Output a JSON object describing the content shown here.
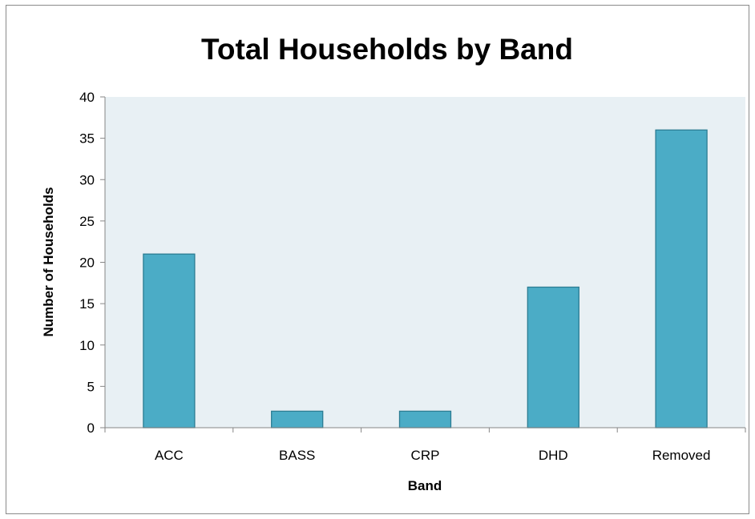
{
  "chart_data": {
    "type": "bar",
    "title": "Total Households by Band",
    "xlabel": "Band",
    "ylabel": "Number of Households",
    "categories": [
      "ACC",
      "BASS",
      "CRP",
      "DHD",
      "Removed"
    ],
    "values": [
      21,
      2,
      2,
      17,
      36
    ],
    "ylim": [
      0,
      40
    ],
    "yticks": [
      0,
      5,
      10,
      15,
      20,
      25,
      30,
      35,
      40
    ],
    "grid": false,
    "legend": "none",
    "colors": {
      "bar_fill": "#4bacc6",
      "bar_stroke": "#2c7d93",
      "plot_background": "#e8f0f4",
      "axis": "#868686"
    }
  }
}
